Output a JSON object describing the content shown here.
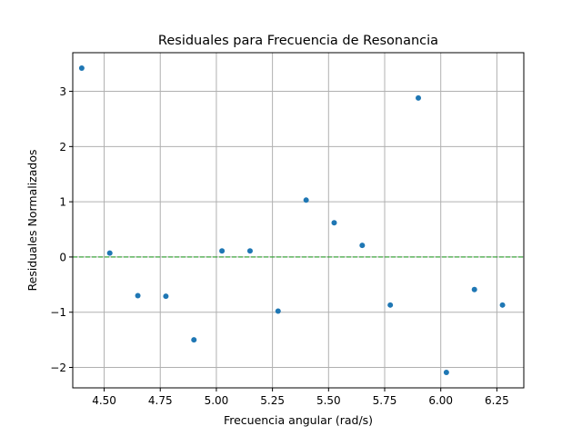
{
  "chart_data": {
    "type": "scatter",
    "title": "Residuales para Frecuencia de Resonancia",
    "xlabel": "Frecuencia angular (rad/s)",
    "ylabel": "Residuales Normalizados",
    "xlim": [
      4.36,
      6.37
    ],
    "ylim": [
      -2.37,
      3.7
    ],
    "xticks": [
      {
        "value": 4.5,
        "label": "4.50"
      },
      {
        "value": 4.75,
        "label": "4.75"
      },
      {
        "value": 5.0,
        "label": "5.00"
      },
      {
        "value": 5.25,
        "label": "5.25"
      },
      {
        "value": 5.5,
        "label": "5.50"
      },
      {
        "value": 5.75,
        "label": "5.75"
      },
      {
        "value": 6.0,
        "label": "6.00"
      },
      {
        "value": 6.25,
        "label": "6.25"
      }
    ],
    "yticks": [
      {
        "value": -2,
        "label": "−2"
      },
      {
        "value": -1,
        "label": "−1"
      },
      {
        "value": 0,
        "label": "0"
      },
      {
        "value": 1,
        "label": "1"
      },
      {
        "value": 2,
        "label": "2"
      },
      {
        "value": 3,
        "label": "3"
      }
    ],
    "grid": true,
    "reference_line": {
      "y": 0,
      "style": "dashed",
      "color": "#2ca02c"
    },
    "point_color": "#1f77b4",
    "points": [
      {
        "x": 4.4,
        "y": 3.42
      },
      {
        "x": 4.525,
        "y": 0.07
      },
      {
        "x": 4.65,
        "y": -0.7
      },
      {
        "x": 4.775,
        "y": -0.71
      },
      {
        "x": 4.9,
        "y": -1.5
      },
      {
        "x": 5.025,
        "y": 0.11
      },
      {
        "x": 5.15,
        "y": 0.11
      },
      {
        "x": 5.275,
        "y": -0.98
      },
      {
        "x": 5.4,
        "y": 1.03
      },
      {
        "x": 5.525,
        "y": 0.62
      },
      {
        "x": 5.65,
        "y": 0.21
      },
      {
        "x": 5.775,
        "y": -0.87
      },
      {
        "x": 5.9,
        "y": 2.88
      },
      {
        "x": 6.025,
        "y": -2.09
      },
      {
        "x": 6.15,
        "y": -0.59
      },
      {
        "x": 6.275,
        "y": -0.87
      }
    ]
  }
}
